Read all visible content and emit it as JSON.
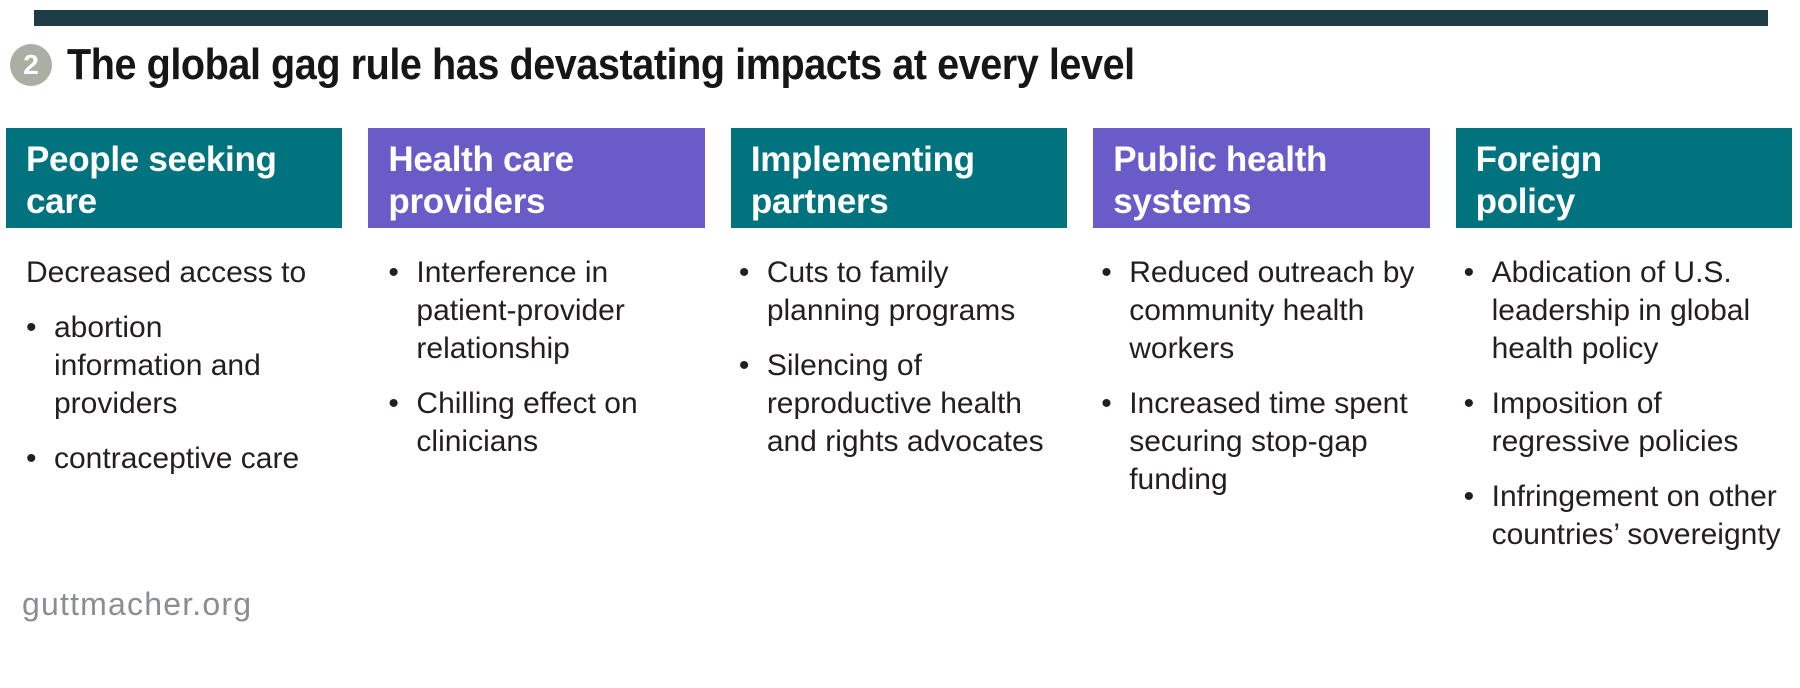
{
  "page": {
    "badge_number": "2",
    "title": "The global gag rule has devastating impacts at every level",
    "footer": "guttmacher.org"
  },
  "colors": {
    "teal": "#00737f",
    "purple": "#6a5cc8",
    "top_bar": "#1e3d47",
    "badge_circle": "#a7b0a3",
    "title_text": "#161616",
    "body_text": "#231f20",
    "footer_text": "#8b8e90"
  },
  "columns": [
    {
      "header": "People seeking care",
      "color": "teal",
      "intro": "Decreased access to",
      "bullets": [
        "abortion information and providers",
        "contraceptive care"
      ]
    },
    {
      "header": "Health care providers",
      "color": "purple",
      "intro": "",
      "bullets": [
        "Interference in patient-provider relationship",
        "Chilling effect on clinicians"
      ]
    },
    {
      "header": "Implementing partners",
      "color": "teal",
      "intro": "",
      "bullets": [
        "Cuts to family planning programs",
        "Silencing of reproductive health and rights advocates"
      ]
    },
    {
      "header": "Public health systems",
      "color": "purple",
      "intro": "",
      "bullets": [
        "Reduced outreach by community health workers",
        "Increased time spent securing stop-gap funding"
      ]
    },
    {
      "header": "Foreign policy",
      "color": "teal",
      "intro": "",
      "bullets": [
        "Abdication of U.S. leadership in global health policy",
        "Imposition of regressive policies",
        "Infringement on other countries’ sovereignty"
      ]
    }
  ]
}
